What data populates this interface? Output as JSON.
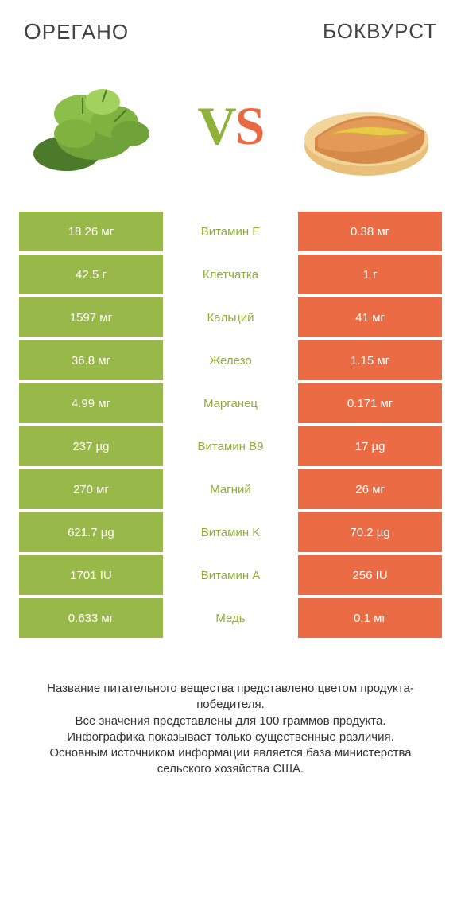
{
  "header": {
    "left_first": "О",
    "left_rest": "РЕГАНО",
    "right": "БОКВУРСТ"
  },
  "vs": {
    "v": "V",
    "s": "S"
  },
  "colors": {
    "green": "#99b84a",
    "orange": "#ea6b44",
    "green_text": "#8fae3d",
    "orange_text": "#e86a42"
  },
  "rows": [
    {
      "left": "18.26 мг",
      "mid": "Витамин E",
      "right": "0.38 мг",
      "winner": "left"
    },
    {
      "left": "42.5 г",
      "mid": "Клетчатка",
      "right": "1 г",
      "winner": "left"
    },
    {
      "left": "1597 мг",
      "mid": "Кальций",
      "right": "41 мг",
      "winner": "left"
    },
    {
      "left": "36.8 мг",
      "mid": "Железо",
      "right": "1.15 мг",
      "winner": "left"
    },
    {
      "left": "4.99 мг",
      "mid": "Марганец",
      "right": "0.171 мг",
      "winner": "left"
    },
    {
      "left": "237 µg",
      "mid": "Витамин B9",
      "right": "17 µg",
      "winner": "left"
    },
    {
      "left": "270 мг",
      "mid": "Магний",
      "right": "26 мг",
      "winner": "left"
    },
    {
      "left": "621.7 µg",
      "mid": "Витамин K",
      "right": "70.2 µg",
      "winner": "left"
    },
    {
      "left": "1701 IU",
      "mid": "Витамин A",
      "right": "256 IU",
      "winner": "left"
    },
    {
      "left": "0.633 мг",
      "mid": "Медь",
      "right": "0.1 мг",
      "winner": "left"
    }
  ],
  "footer": {
    "l1": "Название питательного вещества представлено цветом продукта-победителя.",
    "l2": "Все значения представлены для 100 граммов продукта.",
    "l3": "Инфографика показывает только существенные различия.",
    "l4": "Основным источником информации является база министерства сельского хозяйства США."
  }
}
